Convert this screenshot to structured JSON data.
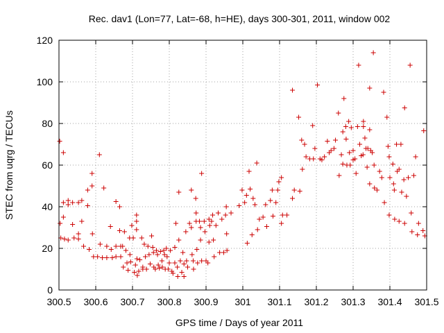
{
  "chart_data": {
    "type": "scatter",
    "title": "Rec. dav1 (Lon=77, Lat=-68, h=HE), days 300-301, 2011, window 002",
    "xlabel": "GPS time / Days of year 2011",
    "ylabel": "STEC from uqrg / TECUs",
    "xlim": [
      300.5,
      301.5
    ],
    "ylim": [
      0,
      120
    ],
    "xticks": [
      300.5,
      300.6,
      300.7,
      300.8,
      300.9,
      301,
      301.1,
      301.2,
      301.3,
      301.4,
      301.5
    ],
    "xtick_labels": [
      "300.5",
      "300.6",
      "300.7",
      "300.8",
      "300.9",
      "301",
      "301.1",
      "301.2",
      "301.3",
      "301.4",
      "301.5"
    ],
    "yticks": [
      0,
      20,
      40,
      60,
      80,
      100,
      120
    ],
    "ytick_labels": [
      "0",
      "20",
      "40",
      "60",
      "80",
      "100",
      "120"
    ],
    "grid": true,
    "marker": "+",
    "color": "#cc0000",
    "series": [
      {
        "name": "STEC",
        "points": [
          [
            300.502,
            71.5
          ],
          [
            300.503,
            32
          ],
          [
            300.505,
            25
          ],
          [
            300.512,
            66
          ],
          [
            300.512,
            42
          ],
          [
            300.512,
            35
          ],
          [
            300.515,
            24.5
          ],
          [
            300.525,
            43
          ],
          [
            300.525,
            41
          ],
          [
            300.525,
            24
          ],
          [
            300.537,
            42
          ],
          [
            300.537,
            31.5
          ],
          [
            300.541,
            25
          ],
          [
            300.553,
            42
          ],
          [
            300.553,
            27
          ],
          [
            300.553,
            24.5
          ],
          [
            300.562,
            43
          ],
          [
            300.562,
            33
          ],
          [
            300.567,
            21
          ],
          [
            300.578,
            48
          ],
          [
            300.578,
            40.5
          ],
          [
            300.582,
            19.5
          ],
          [
            300.59,
            50
          ],
          [
            300.59,
            56
          ],
          [
            300.591,
            27
          ],
          [
            300.594,
            16
          ],
          [
            300.605,
            16
          ],
          [
            300.61,
            65
          ],
          [
            300.612,
            22
          ],
          [
            300.618,
            15.5
          ],
          [
            300.622,
            49
          ],
          [
            300.63,
            21
          ],
          [
            300.63,
            15.5
          ],
          [
            300.64,
            30.5
          ],
          [
            300.642,
            19.5
          ],
          [
            300.645,
            15.5
          ],
          [
            300.655,
            42.5
          ],
          [
            300.655,
            21
          ],
          [
            300.655,
            16
          ],
          [
            300.665,
            40
          ],
          [
            300.665,
            28.5
          ],
          [
            300.668,
            21
          ],
          [
            300.668,
            16
          ],
          [
            300.673,
            21
          ],
          [
            300.675,
            11
          ],
          [
            300.678,
            28
          ],
          [
            300.682,
            19
          ],
          [
            300.685,
            13
          ],
          [
            300.688,
            9.5
          ],
          [
            300.692,
            25
          ],
          [
            300.693,
            17
          ],
          [
            300.695,
            13.5
          ],
          [
            300.698,
            31
          ],
          [
            300.702,
            25
          ],
          [
            300.705,
            8.5
          ],
          [
            300.708,
            12
          ],
          [
            300.711,
            36
          ],
          [
            300.711,
            33
          ],
          [
            300.711,
            29
          ],
          [
            300.712,
            15
          ],
          [
            300.713,
            7
          ],
          [
            300.717,
            9
          ],
          [
            300.72,
            14.5
          ],
          [
            300.725,
            25
          ],
          [
            300.728,
            11
          ],
          [
            300.728,
            10
          ],
          [
            300.732,
            22
          ],
          [
            300.735,
            16
          ],
          [
            300.738,
            10
          ],
          [
            300.742,
            21
          ],
          [
            300.745,
            17
          ],
          [
            300.748,
            12.5
          ],
          [
            300.752,
            26
          ],
          [
            300.755,
            20.5
          ],
          [
            300.757,
            18
          ],
          [
            300.758,
            11
          ],
          [
            300.762,
            10
          ],
          [
            300.765,
            19
          ],
          [
            300.768,
            17
          ],
          [
            300.77,
            12
          ],
          [
            300.773,
            10.5
          ],
          [
            300.776,
            18.5
          ],
          [
            300.78,
            14
          ],
          [
            300.781,
            11
          ],
          [
            300.785,
            19
          ],
          [
            300.787,
            17
          ],
          [
            300.789,
            10
          ],
          [
            300.792,
            20
          ],
          [
            300.794,
            16
          ],
          [
            300.797,
            10
          ],
          [
            300.8,
            13
          ],
          [
            300.803,
            19
          ],
          [
            300.807,
            9
          ],
          [
            300.81,
            8
          ],
          [
            300.815,
            20.5
          ],
          [
            300.815,
            13
          ],
          [
            300.818,
            32
          ],
          [
            300.822,
            11
          ],
          [
            300.823,
            6.5
          ],
          [
            300.826,
            47
          ],
          [
            300.826,
            24
          ],
          [
            300.83,
            14
          ],
          [
            300.834,
            8.5
          ],
          [
            300.837,
            18
          ],
          [
            300.84,
            12.5
          ],
          [
            300.84,
            6.5
          ],
          [
            300.845,
            28
          ],
          [
            300.847,
            14
          ],
          [
            300.85,
            11
          ],
          [
            300.855,
            32
          ],
          [
            300.86,
            48
          ],
          [
            300.86,
            30
          ],
          [
            300.862,
            17
          ],
          [
            300.865,
            14
          ],
          [
            300.866,
            10
          ],
          [
            300.872,
            44
          ],
          [
            300.873,
            37
          ],
          [
            300.873,
            33
          ],
          [
            300.875,
            19.5
          ],
          [
            300.877,
            13
          ],
          [
            300.882,
            33
          ],
          [
            300.885,
            30
          ],
          [
            300.885,
            24
          ],
          [
            300.888,
            56
          ],
          [
            300.888,
            14
          ],
          [
            300.895,
            33
          ],
          [
            300.897,
            28
          ],
          [
            300.9,
            14
          ],
          [
            300.905,
            13
          ],
          [
            300.908,
            34
          ],
          [
            300.908,
            23
          ],
          [
            300.91,
            31
          ],
          [
            300.915,
            33
          ],
          [
            300.918,
            36
          ],
          [
            300.92,
            24
          ],
          [
            300.922,
            16
          ],
          [
            300.927,
            31
          ],
          [
            300.933,
            37
          ],
          [
            300.937,
            18
          ],
          [
            300.943,
            34
          ],
          [
            300.948,
            18
          ],
          [
            300.953,
            36
          ],
          [
            300.955,
            40
          ],
          [
            300.956,
            27
          ],
          [
            300.957,
            19
          ],
          [
            300.968,
            37
          ],
          [
            300.99,
            40.5
          ],
          [
            300.998,
            48
          ],
          [
            301.005,
            42
          ],
          [
            301.01,
            45.5
          ],
          [
            301.012,
            22.5
          ],
          [
            301.017,
            57
          ],
          [
            301.02,
            48.5
          ],
          [
            301.025,
            26.5
          ],
          [
            301.028,
            44
          ],
          [
            301.033,
            41
          ],
          [
            301.038,
            61
          ],
          [
            301.04,
            29
          ],
          [
            301.045,
            34
          ],
          [
            301.055,
            35
          ],
          [
            301.062,
            41
          ],
          [
            301.065,
            30.5
          ],
          [
            301.075,
            43
          ],
          [
            301.08,
            48
          ],
          [
            301.082,
            35.5
          ],
          [
            301.09,
            42
          ],
          [
            301.095,
            48
          ],
          [
            301.098,
            52
          ],
          [
            301.105,
            54
          ],
          [
            301.105,
            32
          ],
          [
            301.108,
            36
          ],
          [
            301.12,
            36
          ],
          [
            301.135,
            96
          ],
          [
            301.135,
            44
          ],
          [
            301.14,
            48
          ],
          [
            301.152,
            83
          ],
          [
            301.155,
            47.5
          ],
          [
            301.16,
            72
          ],
          [
            301.162,
            58
          ],
          [
            301.168,
            70
          ],
          [
            301.172,
            64
          ],
          [
            301.182,
            63
          ],
          [
            301.19,
            79
          ],
          [
            301.192,
            63
          ],
          [
            301.196,
            68
          ],
          [
            301.203,
            98.5
          ],
          [
            301.21,
            63
          ],
          [
            301.215,
            62.5
          ],
          [
            301.222,
            64
          ],
          [
            301.23,
            71.5
          ],
          [
            301.235,
            66
          ],
          [
            301.24,
            67
          ],
          [
            301.248,
            68
          ],
          [
            301.252,
            72
          ],
          [
            301.26,
            85
          ],
          [
            301.262,
            55
          ],
          [
            301.268,
            65
          ],
          [
            301.272,
            76
          ],
          [
            301.272,
            60.5
          ],
          [
            301.275,
            92
          ],
          [
            301.28,
            78.5
          ],
          [
            301.281,
            72.5
          ],
          [
            301.283,
            60
          ],
          [
            301.288,
            81
          ],
          [
            301.29,
            66
          ],
          [
            301.292,
            60
          ],
          [
            301.295,
            78
          ],
          [
            301.3,
            67
          ],
          [
            301.3,
            62.5
          ],
          [
            301.305,
            63
          ],
          [
            301.308,
            56
          ],
          [
            301.312,
            78.5
          ],
          [
            301.315,
            108
          ],
          [
            301.318,
            70
          ],
          [
            301.322,
            64.5
          ],
          [
            301.327,
            65
          ],
          [
            301.328,
            81
          ],
          [
            301.328,
            78.5
          ],
          [
            301.332,
            73
          ],
          [
            301.335,
            68
          ],
          [
            301.338,
            59
          ],
          [
            301.34,
            68
          ],
          [
            301.345,
            77
          ],
          [
            301.345,
            97
          ],
          [
            301.345,
            51
          ],
          [
            301.348,
            67
          ],
          [
            301.352,
            66
          ],
          [
            301.355,
            114
          ],
          [
            301.357,
            60
          ],
          [
            301.358,
            49
          ],
          [
            301.365,
            48
          ],
          [
            301.372,
            57
          ],
          [
            301.378,
            54
          ],
          [
            301.383,
            95
          ],
          [
            301.385,
            42
          ],
          [
            301.392,
            83
          ],
          [
            301.395,
            69
          ],
          [
            301.398,
            64
          ],
          [
            301.398,
            36
          ],
          [
            301.4,
            54
          ],
          [
            301.408,
            60.5
          ],
          [
            301.41,
            51
          ],
          [
            301.412,
            48
          ],
          [
            301.413,
            34
          ],
          [
            301.418,
            70
          ],
          [
            301.42,
            57
          ],
          [
            301.425,
            58
          ],
          [
            301.425,
            33
          ],
          [
            301.43,
            70
          ],
          [
            301.432,
            47
          ],
          [
            301.438,
            53
          ],
          [
            301.44,
            32
          ],
          [
            301.44,
            87.5
          ],
          [
            301.445,
            45
          ],
          [
            301.45,
            54
          ],
          [
            301.455,
            108
          ],
          [
            301.458,
            37
          ],
          [
            301.46,
            28
          ],
          [
            301.465,
            55
          ],
          [
            301.47,
            64
          ],
          [
            301.475,
            26.5
          ],
          [
            301.478,
            32
          ],
          [
            301.49,
            28.5
          ],
          [
            301.492,
            76.5
          ],
          [
            301.495,
            26
          ]
        ]
      }
    ]
  }
}
